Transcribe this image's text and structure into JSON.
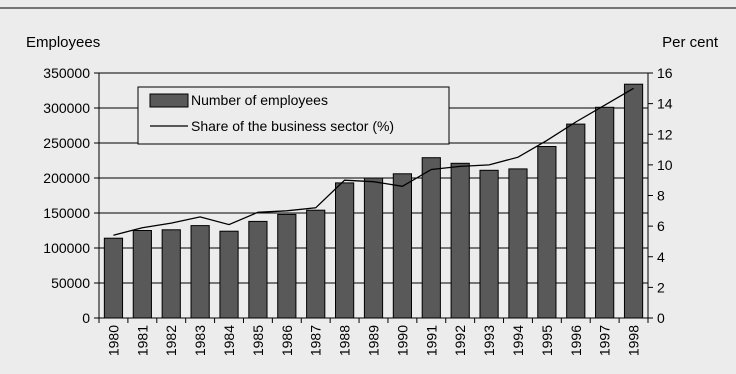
{
  "chart_data": {
    "type": "bar",
    "categories": [
      "1980",
      "1981",
      "1982",
      "1983",
      "1984",
      "1985",
      "1986",
      "1987",
      "1988",
      "1989",
      "1990",
      "1991",
      "1992",
      "1993",
      "1994",
      "1995",
      "1996",
      "1997",
      "1998"
    ],
    "series": [
      {
        "name": "Number of employees",
        "type": "bar",
        "axis": "left",
        "color": "#595959",
        "values": [
          114000,
          125000,
          126000,
          132000,
          124000,
          138000,
          148000,
          154000,
          193000,
          200000,
          206000,
          229000,
          221000,
          211000,
          213000,
          245000,
          277000,
          301000,
          334000
        ]
      },
      {
        "name": "Share of the business sector (%)",
        "type": "line",
        "axis": "right",
        "color": "#000000",
        "values": [
          5.4,
          5.9,
          6.2,
          6.6,
          6.1,
          6.9,
          7.0,
          7.2,
          9.0,
          8.9,
          8.6,
          9.7,
          9.9,
          10.0,
          10.5,
          11.6,
          12.8,
          13.9,
          15.0
        ]
      }
    ],
    "ylabel_left": "Employees",
    "ylabel_right": "Per cent",
    "ylim_left": [
      0,
      350000
    ],
    "ylim_right": [
      0,
      16
    ],
    "yticks_left": [
      "0",
      "50000",
      "100000",
      "150000",
      "200000",
      "250000",
      "300000",
      "350000"
    ],
    "yticks_right": [
      "0",
      "2",
      "4",
      "6",
      "8",
      "10",
      "12",
      "14",
      "16"
    ],
    "grid": true,
    "legend_position": "top-left"
  }
}
